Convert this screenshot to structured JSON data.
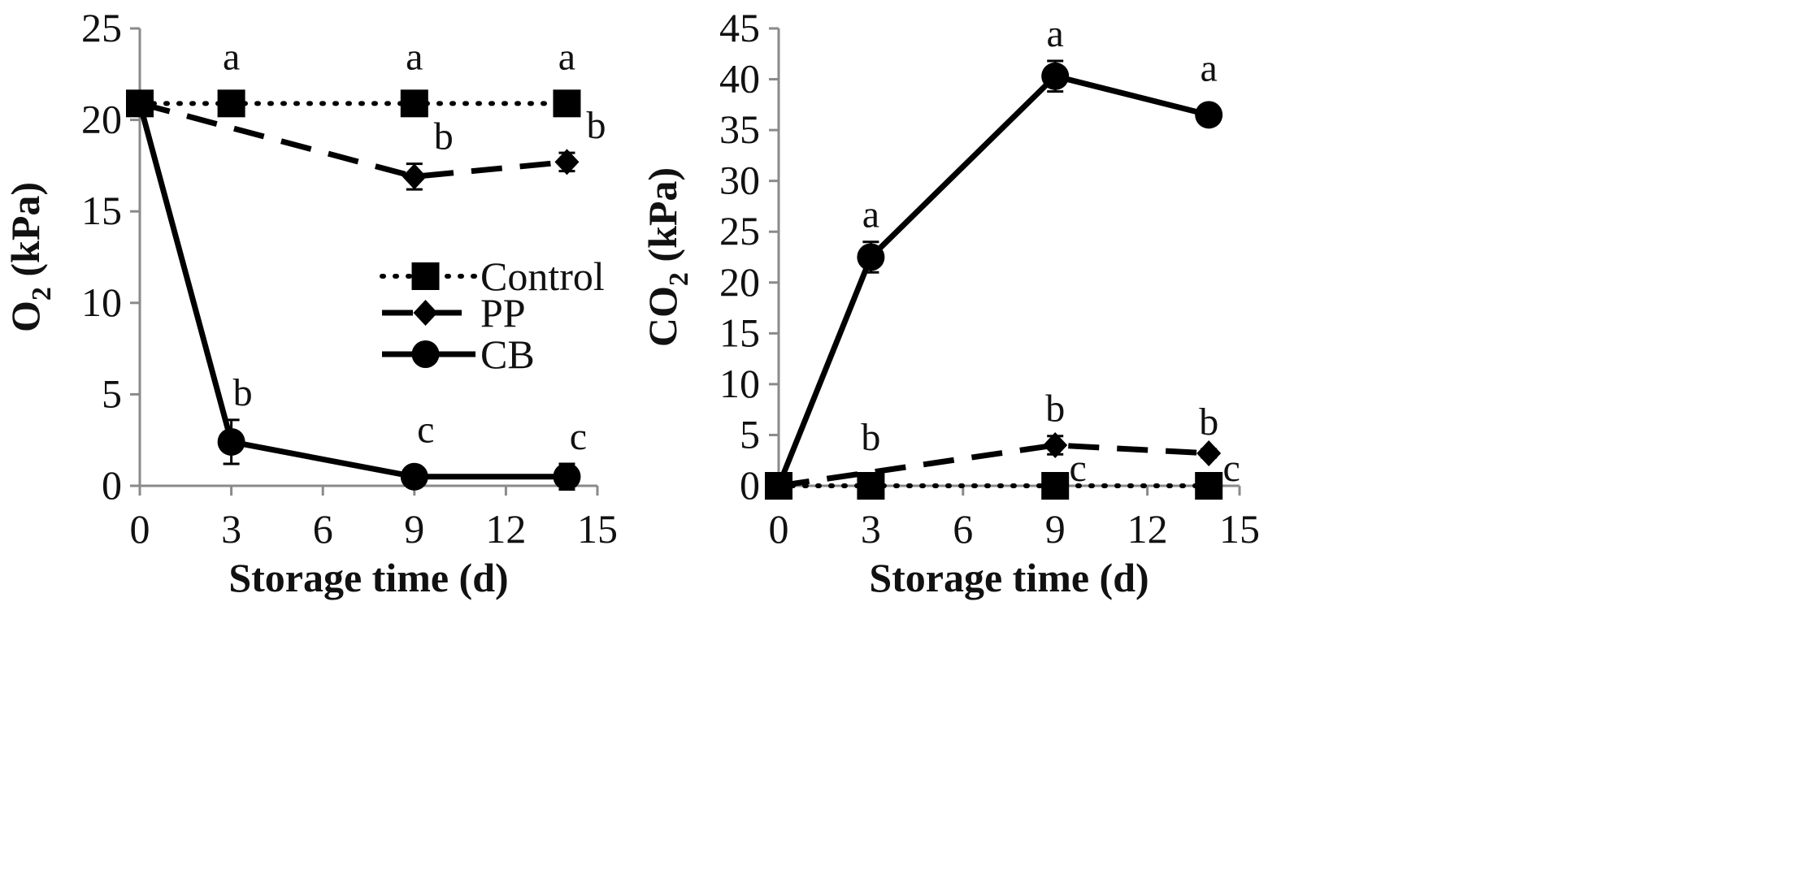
{
  "chart_data": [
    {
      "type": "line",
      "panel": "left",
      "title": "",
      "xlabel": "Storage time (d)",
      "ylabel": "O",
      "ylabel_sub": "2",
      "ylabel_unit": " (kPa)",
      "xlim": [
        0,
        15
      ],
      "ylim": [
        0,
        25
      ],
      "xticks": [
        "0",
        "3",
        "6",
        "9",
        "12",
        "15"
      ],
      "yticks": [
        "0",
        "5",
        "10",
        "15",
        "20",
        "25"
      ],
      "legend_position": "center",
      "series": [
        {
          "name": "Control",
          "marker": "square",
          "style": "dotted",
          "x": [
            0,
            3,
            9,
            14
          ],
          "y": [
            20.9,
            20.9,
            20.9,
            20.9
          ],
          "err": [
            0,
            0,
            0,
            0
          ],
          "letters": [
            "",
            "a",
            "a",
            "a"
          ]
        },
        {
          "name": "PP",
          "marker": "diamond",
          "style": "dashed",
          "x": [
            0,
            9,
            14
          ],
          "y": [
            20.9,
            16.9,
            17.7
          ],
          "err": [
            0,
            0.7,
            0.5
          ],
          "letters": [
            "",
            "b",
            "b"
          ]
        },
        {
          "name": "CB",
          "marker": "circle",
          "style": "solid",
          "x": [
            0,
            3,
            9,
            14
          ],
          "y": [
            20.9,
            2.4,
            0.5,
            0.5
          ],
          "err": [
            0,
            1.2,
            0,
            0.7
          ],
          "letters": [
            "",
            "b",
            "c",
            "c"
          ]
        }
      ]
    },
    {
      "type": "line",
      "panel": "right",
      "title": "",
      "xlabel": "Storage time (d)",
      "ylabel": "CO",
      "ylabel_sub": "2",
      "ylabel_unit": " (kPa)",
      "xlim": [
        0,
        15
      ],
      "ylim": [
        0,
        45
      ],
      "xticks": [
        "0",
        "3",
        "6",
        "9",
        "12",
        "15"
      ],
      "yticks": [
        "0",
        "5",
        "10",
        "15",
        "20",
        "25",
        "30",
        "35",
        "40",
        "45"
      ],
      "series": [
        {
          "name": "Control",
          "marker": "square",
          "style": "dotted",
          "x": [
            0,
            3,
            9,
            14
          ],
          "y": [
            0,
            0,
            0,
            0
          ],
          "err": [
            0,
            0,
            0,
            0
          ],
          "letters": [
            "",
            "",
            "c",
            "c"
          ]
        },
        {
          "name": "PP",
          "marker": "diamond",
          "style": "dashed",
          "x": [
            0,
            9,
            14
          ],
          "y": [
            0,
            4.0,
            3.2
          ],
          "err": [
            0,
            0.9,
            0.4
          ],
          "letters": [
            "",
            "b",
            "b"
          ]
        },
        {
          "name": "CB",
          "marker": "circle",
          "style": "solid",
          "x": [
            0,
            3,
            9,
            14
          ],
          "y": [
            0,
            22.5,
            40.3,
            36.5
          ],
          "err": [
            0,
            1.5,
            1.5,
            0
          ],
          "letters": [
            "",
            "a",
            "a",
            "a"
          ]
        }
      ],
      "extra_letters": [
        {
          "x": 3,
          "text": "b"
        }
      ]
    }
  ]
}
